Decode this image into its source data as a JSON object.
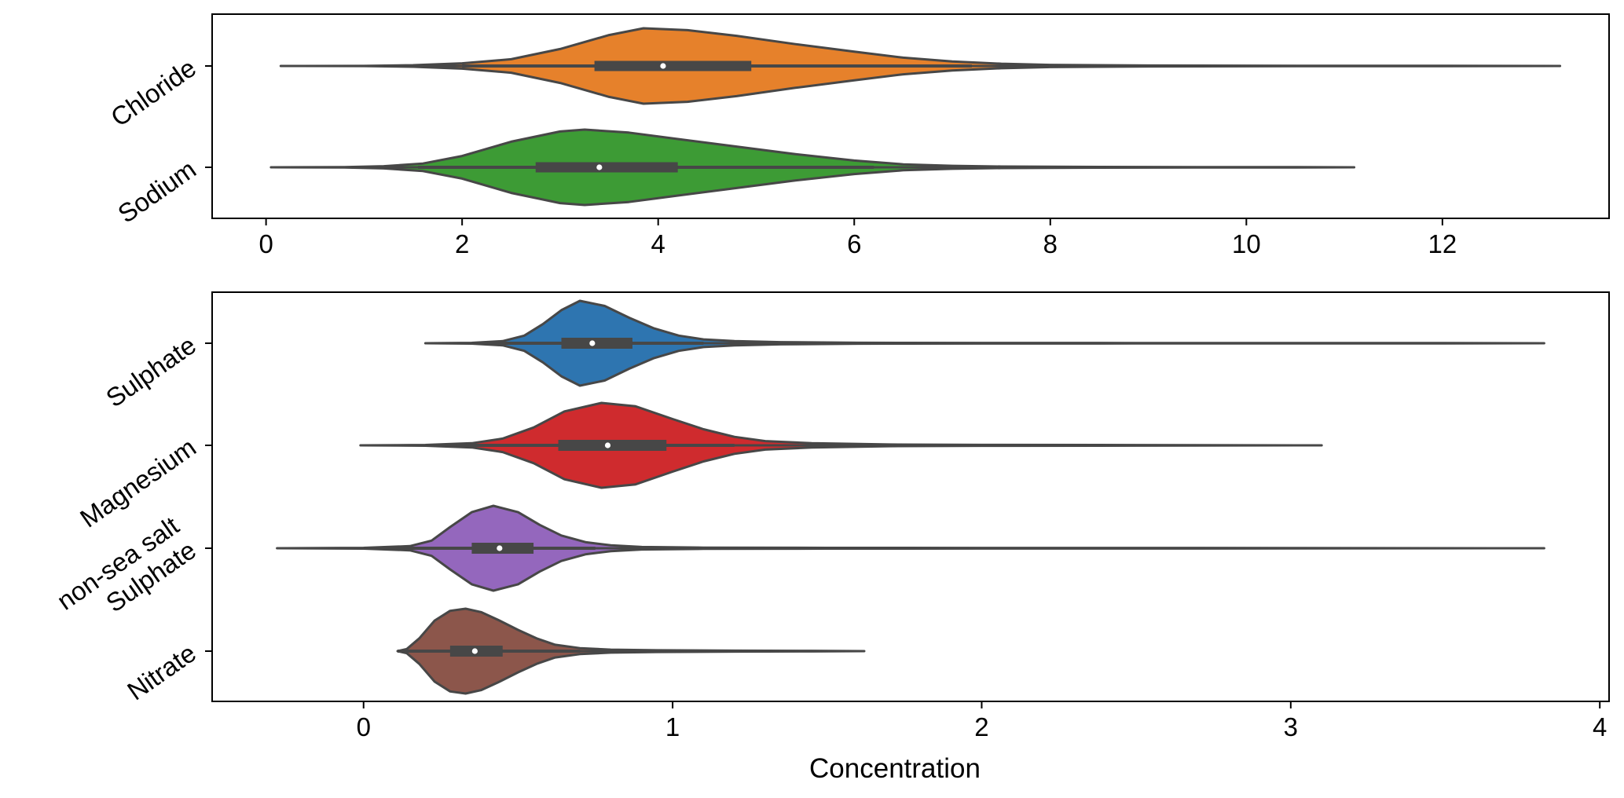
{
  "chart_data": [
    {
      "type": "violin",
      "orientation": "horizontal",
      "xlim": [
        -0.55,
        13.7
      ],
      "xticks": [
        0,
        2,
        4,
        6,
        8,
        10,
        12
      ],
      "xlabel": "",
      "categories": [
        "Chloride",
        "Sodium"
      ],
      "series": [
        {
          "name": "Chloride",
          "color": "#e6812b",
          "min": 0.15,
          "q1": 3.35,
          "median": 4.05,
          "q3": 4.95,
          "max": 13.2,
          "whisker_low": 2.0,
          "whisker_high": 7.2,
          "density": [
            [
              0.15,
              0.0
            ],
            [
              1.0,
              0.003
            ],
            [
              1.5,
              0.02
            ],
            [
              2.0,
              0.07
            ],
            [
              2.5,
              0.18
            ],
            [
              3.0,
              0.45
            ],
            [
              3.5,
              0.82
            ],
            [
              3.85,
              1.0
            ],
            [
              4.3,
              0.95
            ],
            [
              4.8,
              0.8
            ],
            [
              5.4,
              0.58
            ],
            [
              6.0,
              0.38
            ],
            [
              6.5,
              0.22
            ],
            [
              7.0,
              0.12
            ],
            [
              7.5,
              0.06
            ],
            [
              8.0,
              0.03
            ],
            [
              9.0,
              0.012
            ],
            [
              10.0,
              0.008
            ],
            [
              11.0,
              0.005
            ],
            [
              12.0,
              0.004
            ],
            [
              13.2,
              0.0
            ]
          ]
        },
        {
          "name": "Sodium",
          "color": "#3d9b35",
          "min": 0.05,
          "q1": 2.75,
          "median": 3.4,
          "q3": 4.2,
          "max": 11.1,
          "whisker_low": 1.55,
          "whisker_high": 6.2,
          "density": [
            [
              0.05,
              0.0
            ],
            [
              0.8,
              0.005
            ],
            [
              1.2,
              0.03
            ],
            [
              1.6,
              0.1
            ],
            [
              2.0,
              0.3
            ],
            [
              2.5,
              0.68
            ],
            [
              3.0,
              0.95
            ],
            [
              3.25,
              1.0
            ],
            [
              3.7,
              0.92
            ],
            [
              4.2,
              0.75
            ],
            [
              4.8,
              0.55
            ],
            [
              5.4,
              0.35
            ],
            [
              6.0,
              0.18
            ],
            [
              6.5,
              0.08
            ],
            [
              7.0,
              0.04
            ],
            [
              7.5,
              0.02
            ],
            [
              8.5,
              0.01
            ],
            [
              9.5,
              0.007
            ],
            [
              10.5,
              0.004
            ],
            [
              11.1,
              0.0
            ]
          ]
        }
      ]
    },
    {
      "type": "violin",
      "orientation": "horizontal",
      "xlim": [
        -0.49,
        4.03
      ],
      "xticks": [
        0,
        1,
        2,
        3,
        4
      ],
      "xlabel": "Concentration",
      "categories": [
        "Sulphate",
        "Magnesium",
        "non-sea salt Sulphate",
        "Nitrate"
      ],
      "series": [
        {
          "name": "Sulphate",
          "color": "#2e75b0",
          "min": 0.2,
          "q1": 0.64,
          "median": 0.74,
          "q3": 0.87,
          "max": 3.82,
          "whisker_low": 0.4,
          "whisker_high": 1.1,
          "density": [
            [
              0.2,
              0.0
            ],
            [
              0.35,
              0.01
            ],
            [
              0.45,
              0.05
            ],
            [
              0.52,
              0.18
            ],
            [
              0.58,
              0.45
            ],
            [
              0.64,
              0.78
            ],
            [
              0.7,
              1.0
            ],
            [
              0.78,
              0.88
            ],
            [
              0.86,
              0.6
            ],
            [
              0.94,
              0.35
            ],
            [
              1.02,
              0.18
            ],
            [
              1.1,
              0.09
            ],
            [
              1.2,
              0.05
            ],
            [
              1.35,
              0.025
            ],
            [
              1.6,
              0.012
            ],
            [
              2.0,
              0.008
            ],
            [
              2.5,
              0.006
            ],
            [
              3.0,
              0.005
            ],
            [
              3.5,
              0.003
            ],
            [
              3.82,
              0.0
            ]
          ]
        },
        {
          "name": "Magnesium",
          "color": "#cf2b2e",
          "min": -0.01,
          "q1": 0.63,
          "median": 0.79,
          "q3": 0.98,
          "max": 3.1,
          "whisker_low": 0.3,
          "whisker_high": 1.2,
          "density": [
            [
              -0.01,
              0.0
            ],
            [
              0.2,
              0.01
            ],
            [
              0.35,
              0.05
            ],
            [
              0.45,
              0.16
            ],
            [
              0.55,
              0.42
            ],
            [
              0.65,
              0.8
            ],
            [
              0.77,
              1.0
            ],
            [
              0.88,
              0.92
            ],
            [
              1.0,
              0.62
            ],
            [
              1.1,
              0.38
            ],
            [
              1.2,
              0.2
            ],
            [
              1.3,
              0.1
            ],
            [
              1.45,
              0.05
            ],
            [
              1.7,
              0.02
            ],
            [
              2.0,
              0.012
            ],
            [
              2.5,
              0.008
            ],
            [
              3.1,
              0.0
            ]
          ]
        },
        {
          "name": "non-sea salt Sulphate",
          "color": "#9467bd",
          "min": -0.28,
          "q1": 0.35,
          "median": 0.44,
          "q3": 0.55,
          "max": 3.82,
          "whisker_low": 0.1,
          "whisker_high": 0.75,
          "density": [
            [
              -0.28,
              0.0
            ],
            [
              0.0,
              0.01
            ],
            [
              0.15,
              0.05
            ],
            [
              0.22,
              0.18
            ],
            [
              0.28,
              0.5
            ],
            [
              0.35,
              0.85
            ],
            [
              0.42,
              1.0
            ],
            [
              0.5,
              0.85
            ],
            [
              0.57,
              0.55
            ],
            [
              0.64,
              0.3
            ],
            [
              0.72,
              0.14
            ],
            [
              0.8,
              0.07
            ],
            [
              0.9,
              0.03
            ],
            [
              1.1,
              0.015
            ],
            [
              1.5,
              0.01
            ],
            [
              2.0,
              0.008
            ],
            [
              3.0,
              0.005
            ],
            [
              3.82,
              0.0
            ]
          ]
        },
        {
          "name": "Nitrate",
          "color": "#8c564b",
          "min": 0.11,
          "q1": 0.28,
          "median": 0.36,
          "q3": 0.45,
          "max": 1.62,
          "whisker_low": 0.11,
          "whisker_high": 0.7,
          "density": [
            [
              0.11,
              0.0
            ],
            [
              0.14,
              0.05
            ],
            [
              0.18,
              0.3
            ],
            [
              0.23,
              0.72
            ],
            [
              0.28,
              0.95
            ],
            [
              0.33,
              1.0
            ],
            [
              0.38,
              0.92
            ],
            [
              0.44,
              0.72
            ],
            [
              0.5,
              0.5
            ],
            [
              0.56,
              0.3
            ],
            [
              0.62,
              0.15
            ],
            [
              0.7,
              0.07
            ],
            [
              0.8,
              0.035
            ],
            [
              0.95,
              0.02
            ],
            [
              1.2,
              0.012
            ],
            [
              1.45,
              0.007
            ],
            [
              1.62,
              0.0
            ]
          ]
        }
      ]
    }
  ]
}
